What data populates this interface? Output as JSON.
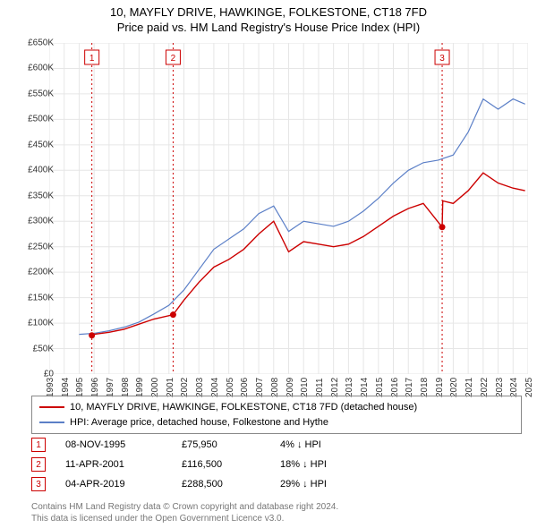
{
  "title_line1": "10, MAYFLY DRIVE, HAWKINGE, FOLKESTONE, CT18 7FD",
  "title_line2": "Price paid vs. HM Land Registry's House Price Index (HPI)",
  "chart": {
    "type": "line",
    "background_color": "#ffffff",
    "grid_color": "#e6e6e6",
    "x_start": 1993,
    "x_end": 2025,
    "ylim": [
      0,
      650000
    ],
    "ytick_step": 50000,
    "ytick_labels": [
      "£0",
      "£50K",
      "£100K",
      "£150K",
      "£200K",
      "£250K",
      "£300K",
      "£350K",
      "£400K",
      "£450K",
      "£500K",
      "£550K",
      "£600K",
      "£650K"
    ],
    "xtick_years": [
      1993,
      1994,
      1995,
      1996,
      1997,
      1998,
      1999,
      2000,
      2001,
      2002,
      2003,
      2004,
      2005,
      2006,
      2007,
      2008,
      2009,
      2010,
      2011,
      2012,
      2013,
      2014,
      2015,
      2016,
      2017,
      2018,
      2019,
      2020,
      2021,
      2022,
      2023,
      2024,
      2025
    ],
    "series": [
      {
        "name": "price_paid",
        "color": "#cc0000",
        "width": 1.4,
        "points": [
          [
            1995.85,
            75950
          ],
          [
            1996,
            78000
          ],
          [
            1997,
            82000
          ],
          [
            1998,
            88000
          ],
          [
            1999,
            98000
          ],
          [
            2000,
            108000
          ],
          [
            2001.28,
            116500
          ],
          [
            2002,
            145000
          ],
          [
            2003,
            180000
          ],
          [
            2004,
            210000
          ],
          [
            2005,
            225000
          ],
          [
            2006,
            245000
          ],
          [
            2007,
            275000
          ],
          [
            2008,
            300000
          ],
          [
            2009,
            240000
          ],
          [
            2010,
            260000
          ],
          [
            2011,
            255000
          ],
          [
            2012,
            250000
          ],
          [
            2013,
            255000
          ],
          [
            2014,
            270000
          ],
          [
            2015,
            290000
          ],
          [
            2016,
            310000
          ],
          [
            2017,
            325000
          ],
          [
            2018,
            335000
          ],
          [
            2019.26,
            288500
          ],
          [
            2019.3,
            340000
          ],
          [
            2020,
            335000
          ],
          [
            2021,
            360000
          ],
          [
            2022,
            395000
          ],
          [
            2023,
            375000
          ],
          [
            2024,
            365000
          ],
          [
            2024.8,
            360000
          ]
        ]
      },
      {
        "name": "hpi",
        "color": "#5b7fc7",
        "width": 1.2,
        "points": [
          [
            1995,
            78000
          ],
          [
            1996,
            80000
          ],
          [
            1997,
            85000
          ],
          [
            1998,
            92000
          ],
          [
            1999,
            102000
          ],
          [
            2000,
            118000
          ],
          [
            2001,
            135000
          ],
          [
            2002,
            165000
          ],
          [
            2003,
            205000
          ],
          [
            2004,
            245000
          ],
          [
            2005,
            265000
          ],
          [
            2006,
            285000
          ],
          [
            2007,
            315000
          ],
          [
            2008,
            330000
          ],
          [
            2009,
            280000
          ],
          [
            2010,
            300000
          ],
          [
            2011,
            295000
          ],
          [
            2012,
            290000
          ],
          [
            2013,
            300000
          ],
          [
            2014,
            320000
          ],
          [
            2015,
            345000
          ],
          [
            2016,
            375000
          ],
          [
            2017,
            400000
          ],
          [
            2018,
            415000
          ],
          [
            2019,
            420000
          ],
          [
            2020,
            430000
          ],
          [
            2021,
            475000
          ],
          [
            2022,
            540000
          ],
          [
            2023,
            520000
          ],
          [
            2024,
            540000
          ],
          [
            2024.8,
            530000
          ]
        ]
      }
    ],
    "markers": [
      {
        "num": "1",
        "year": 1995.85,
        "value": 75950
      },
      {
        "num": "2",
        "year": 2001.28,
        "value": 116500
      },
      {
        "num": "3",
        "year": 2019.26,
        "value": 288500
      }
    ],
    "marker_line_color": "#cc0000",
    "marker_dot_color": "#cc0000"
  },
  "legend": {
    "series1_color": "#cc0000",
    "series1_label": "10, MAYFLY DRIVE, HAWKINGE, FOLKESTONE, CT18 7FD (detached house)",
    "series2_color": "#5b7fc7",
    "series2_label": "HPI: Average price, detached house, Folkestone and Hythe"
  },
  "table": [
    {
      "num": "1",
      "date": "08-NOV-1995",
      "price": "£75,950",
      "pct": "4% ↓ HPI"
    },
    {
      "num": "2",
      "date": "11-APR-2001",
      "price": "£116,500",
      "pct": "18% ↓ HPI"
    },
    {
      "num": "3",
      "date": "04-APR-2019",
      "price": "£288,500",
      "pct": "29% ↓ HPI"
    }
  ],
  "footer_line1": "Contains HM Land Registry data © Crown copyright and database right 2024.",
  "footer_line2": "This data is licensed under the Open Government Licence v3.0."
}
